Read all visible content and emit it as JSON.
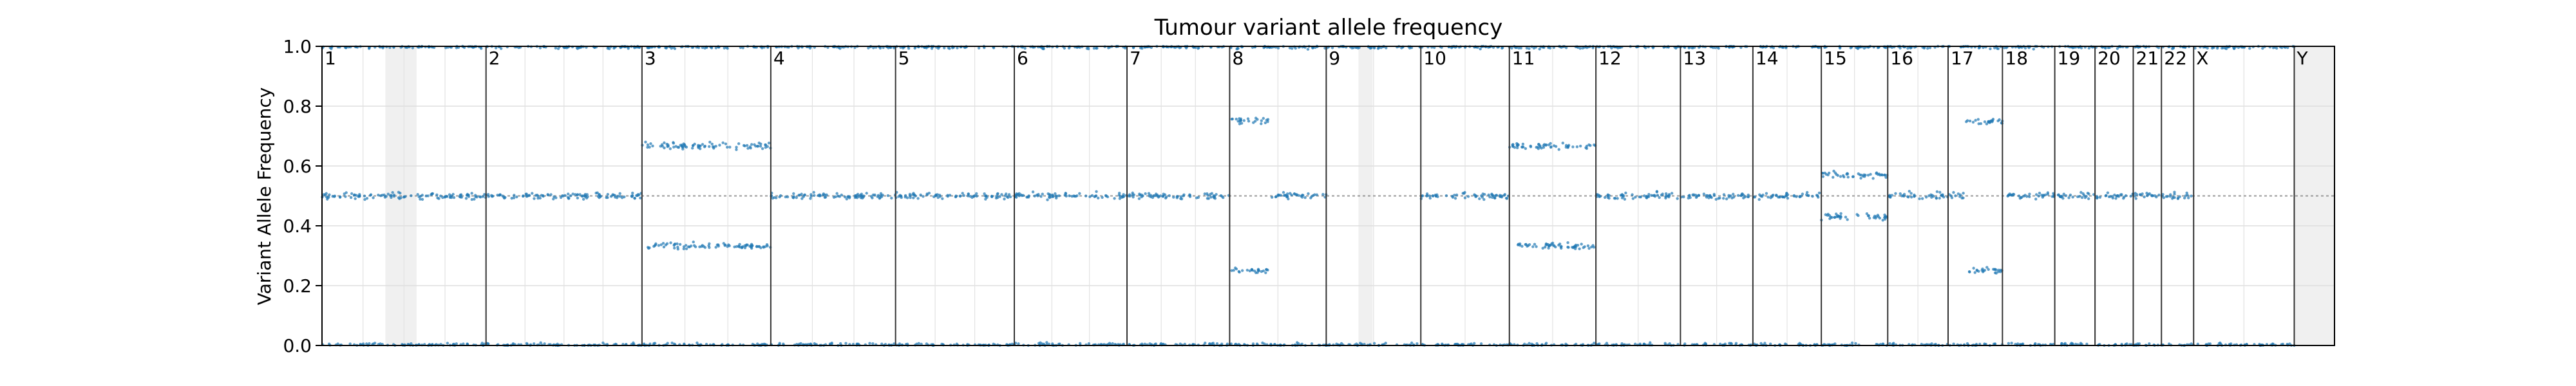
{
  "chart_data": {
    "type": "scatter",
    "title": "Tumour variant allele frequency",
    "ylabel": "Variant Allele Frequency",
    "xlabel": "",
    "ylim": [
      0,
      1.0
    ],
    "yticks": [
      "0.0",
      "0.2",
      "0.4",
      "0.6",
      "0.8",
      "1.0"
    ],
    "grid": true,
    "reference_line": 0.5,
    "point_color": "#1f77b4",
    "chromosome_boundary_color": "#333333",
    "masked_region_color": "#f0f0f0",
    "chromosomes": [
      {
        "name": "1",
        "start": 0.0,
        "end": 0.0815,
        "vaf_clusters": [
          0.0,
          0.5,
          1.0
        ],
        "masked": [
          [
            0.0315,
            0.047
          ]
        ]
      },
      {
        "name": "2",
        "start": 0.0815,
        "end": 0.159,
        "vaf_clusters": [
          0.0,
          0.5,
          1.0
        ]
      },
      {
        "name": "3",
        "start": 0.159,
        "end": 0.223,
        "vaf_clusters": [
          0.0,
          0.333,
          0.667,
          1.0
        ]
      },
      {
        "name": "4",
        "start": 0.223,
        "end": 0.285,
        "vaf_clusters": [
          0.0,
          0.5,
          1.0
        ]
      },
      {
        "name": "5",
        "start": 0.285,
        "end": 0.344,
        "vaf_clusters": [
          0.0,
          0.5,
          1.0
        ]
      },
      {
        "name": "6",
        "start": 0.344,
        "end": 0.4,
        "vaf_clusters": [
          0.0,
          0.5,
          1.0
        ]
      },
      {
        "name": "7",
        "start": 0.4,
        "end": 0.451,
        "vaf_clusters": [
          0.0,
          0.5,
          1.0
        ]
      },
      {
        "name": "8",
        "start": 0.451,
        "end": 0.499,
        "vaf_clusters": [
          0.0,
          0.5,
          1.0
        ],
        "segments": [
          {
            "from": 0.0,
            "to": 0.4,
            "vaf_clusters": [
              0.0,
              0.25,
              0.75,
              1.0
            ]
          }
        ]
      },
      {
        "name": "9",
        "start": 0.499,
        "end": 0.546,
        "vaf_clusters": [
          0.0,
          1.0
        ],
        "masked": [
          [
            0.515,
            0.522
          ]
        ]
      },
      {
        "name": "10",
        "start": 0.546,
        "end": 0.59,
        "vaf_clusters": [
          0.0,
          0.5,
          1.0
        ]
      },
      {
        "name": "11",
        "start": 0.59,
        "end": 0.633,
        "vaf_clusters": [
          0.0,
          0.333,
          0.667,
          1.0
        ]
      },
      {
        "name": "12",
        "start": 0.633,
        "end": 0.675,
        "vaf_clusters": [
          0.0,
          0.5,
          1.0
        ]
      },
      {
        "name": "13",
        "start": 0.675,
        "end": 0.711,
        "vaf_clusters": [
          0.0,
          0.5,
          1.0
        ]
      },
      {
        "name": "14",
        "start": 0.711,
        "end": 0.745,
        "vaf_clusters": [
          0.0,
          0.5,
          1.0
        ]
      },
      {
        "name": "15",
        "start": 0.745,
        "end": 0.778,
        "vaf_clusters": [
          0.0,
          0.43,
          0.57,
          1.0
        ]
      },
      {
        "name": "16",
        "start": 0.778,
        "end": 0.808,
        "vaf_clusters": [
          0.0,
          0.5,
          1.0
        ]
      },
      {
        "name": "17",
        "start": 0.808,
        "end": 0.835,
        "vaf_clusters": [
          0.0,
          0.5,
          1.0
        ],
        "segments": [
          {
            "from": 0.3,
            "to": 1.0,
            "vaf_clusters": [
              0.0,
              0.25,
              0.75,
              1.0
            ]
          }
        ]
      },
      {
        "name": "18",
        "start": 0.835,
        "end": 0.861,
        "vaf_clusters": [
          0.0,
          0.5,
          1.0
        ]
      },
      {
        "name": "19",
        "start": 0.861,
        "end": 0.881,
        "vaf_clusters": [
          0.0,
          0.5,
          1.0
        ]
      },
      {
        "name": "20",
        "start": 0.881,
        "end": 0.9,
        "vaf_clusters": [
          0.0,
          0.5,
          1.0
        ]
      },
      {
        "name": "21",
        "start": 0.9,
        "end": 0.914,
        "vaf_clusters": [
          0.0,
          0.5,
          1.0
        ]
      },
      {
        "name": "22",
        "start": 0.914,
        "end": 0.93,
        "vaf_clusters": [
          0.0,
          0.5,
          1.0
        ]
      },
      {
        "name": "X",
        "start": 0.93,
        "end": 0.98,
        "vaf_clusters": [
          0.0,
          1.0
        ]
      },
      {
        "name": "Y",
        "start": 0.98,
        "end": 1.0,
        "vaf_clusters": [],
        "masked": [
          [
            0.98,
            1.0
          ]
        ]
      }
    ]
  }
}
